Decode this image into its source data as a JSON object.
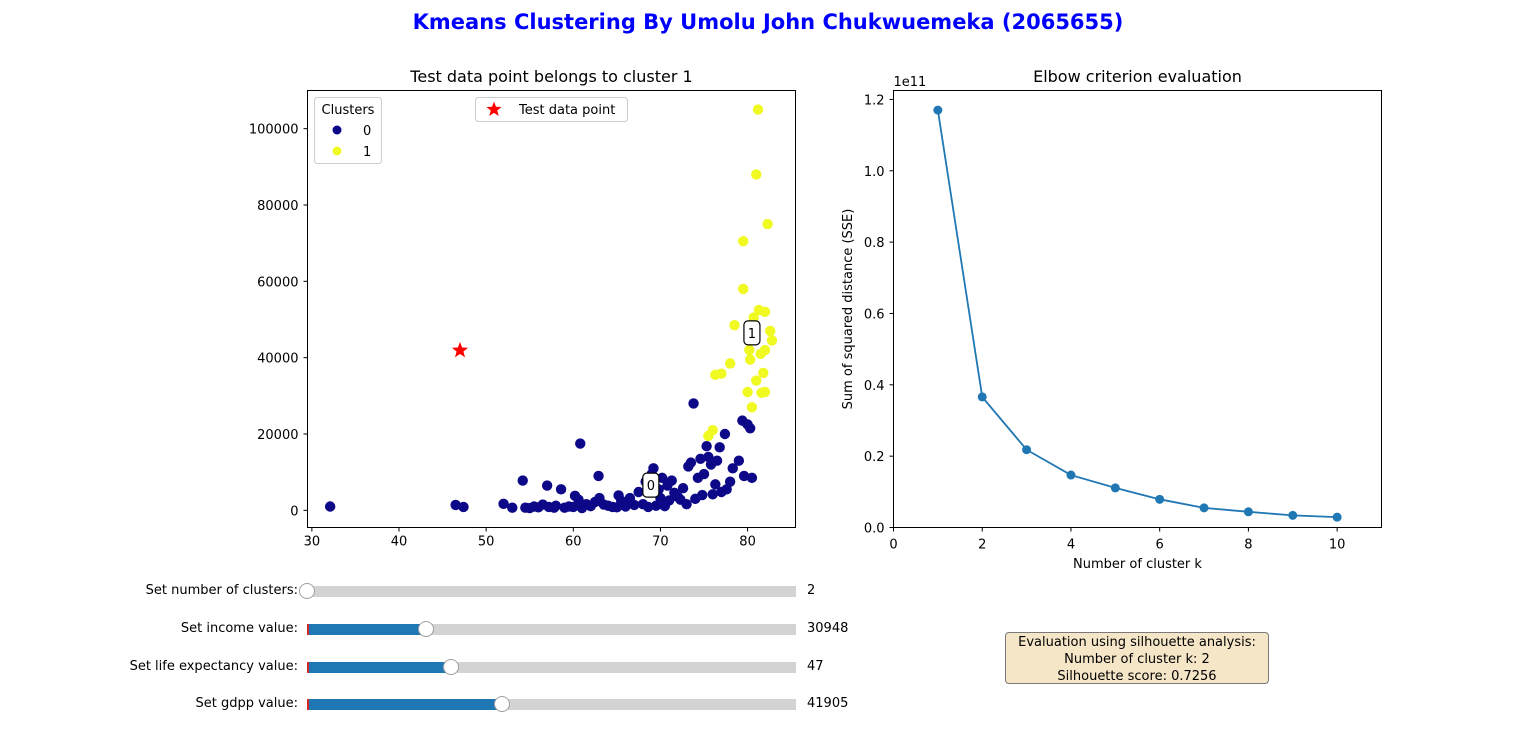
{
  "figure": {
    "suptitle": "Kmeans Clustering By Umolu John Chukwuemeka (2065655)",
    "suptitle_color": "#0000ff"
  },
  "chart_data": [
    {
      "type": "scatter",
      "title": "Test data point belongs to cluster 1",
      "xlabel": "",
      "ylabel": "",
      "xlim": [
        29.5,
        85.5
      ],
      "ylim": [
        -4500,
        110000
      ],
      "xticks": [
        30,
        40,
        50,
        60,
        70,
        80
      ],
      "yticks": [
        0,
        20000,
        40000,
        60000,
        80000,
        100000
      ],
      "grid": false,
      "legend_clusters": {
        "title": "Clusters",
        "placement": "top-left",
        "entries": [
          "0",
          "1"
        ]
      },
      "legend_test": {
        "label": "Test data point",
        "placement": "top-center"
      },
      "series": [
        {
          "name": "0",
          "color": "#0d0887",
          "points": [
            [
              32.1,
              1000
            ],
            [
              46.5,
              1400
            ],
            [
              47.4,
              900
            ],
            [
              52.0,
              1700
            ],
            [
              53.0,
              700
            ],
            [
              54.2,
              7800
            ],
            [
              54.5,
              700
            ],
            [
              55.0,
              600
            ],
            [
              55.5,
              1000
            ],
            [
              56.0,
              800
            ],
            [
              56.5,
              1500
            ],
            [
              57.0,
              6500
            ],
            [
              57.2,
              900
            ],
            [
              57.8,
              700
            ],
            [
              58.0,
              1200
            ],
            [
              58.6,
              5500
            ],
            [
              59.0,
              700
            ],
            [
              59.5,
              1000
            ],
            [
              60.0,
              900
            ],
            [
              60.2,
              3800
            ],
            [
              60.6,
              2800
            ],
            [
              60.8,
              17500
            ],
            [
              61.0,
              600
            ],
            [
              61.5,
              1600
            ],
            [
              62.0,
              1100
            ],
            [
              62.5,
              2200
            ],
            [
              62.9,
              9000
            ],
            [
              63.0,
              3200
            ],
            [
              63.5,
              1500
            ],
            [
              64.0,
              1200
            ],
            [
              64.5,
              900
            ],
            [
              65.0,
              800
            ],
            [
              65.2,
              3900
            ],
            [
              65.5,
              2500
            ],
            [
              66.0,
              1000
            ],
            [
              66.5,
              3200
            ],
            [
              67.0,
              1400
            ],
            [
              67.5,
              4800
            ],
            [
              68.0,
              1600
            ],
            [
              68.3,
              7500
            ],
            [
              68.6,
              900
            ],
            [
              69.0,
              9500
            ],
            [
              69.2,
              11000
            ],
            [
              69.5,
              1200
            ],
            [
              69.8,
              5500
            ],
            [
              70.0,
              3200
            ],
            [
              70.2,
              8500
            ],
            [
              70.5,
              1100
            ],
            [
              70.8,
              6500
            ],
            [
              71.0,
              2600
            ],
            [
              71.3,
              7800
            ],
            [
              71.6,
              4600
            ],
            [
              72.0,
              3500
            ],
            [
              72.3,
              2800
            ],
            [
              72.6,
              5800
            ],
            [
              73.0,
              1600
            ],
            [
              73.2,
              11500
            ],
            [
              73.5,
              12500
            ],
            [
              73.8,
              28000
            ],
            [
              74.0,
              3000
            ],
            [
              74.3,
              8500
            ],
            [
              74.6,
              13500
            ],
            [
              74.8,
              4000
            ],
            [
              75.0,
              9500
            ],
            [
              75.3,
              16800
            ],
            [
              75.5,
              14000
            ],
            [
              75.8,
              12000
            ],
            [
              76.0,
              4200
            ],
            [
              76.3,
              6800
            ],
            [
              76.5,
              13000
            ],
            [
              76.8,
              16500
            ],
            [
              77.0,
              4800
            ],
            [
              77.4,
              20000
            ],
            [
              77.6,
              5500
            ],
            [
              78.0,
              7500
            ],
            [
              78.3,
              11000
            ],
            [
              79.0,
              13000
            ],
            [
              79.4,
              23500
            ],
            [
              79.6,
              9000
            ],
            [
              80.0,
              22500
            ],
            [
              80.3,
              21500
            ],
            [
              80.5,
              8500
            ]
          ]
        },
        {
          "name": "1",
          "color": "#f0f921",
          "points": [
            [
              75.5,
              19500
            ],
            [
              76.0,
              21000
            ],
            [
              76.3,
              35500
            ],
            [
              77.0,
              35800
            ],
            [
              78.0,
              38500
            ],
            [
              78.5,
              48500
            ],
            [
              79.5,
              70500
            ],
            [
              79.5,
              58000
            ],
            [
              80.0,
              31000
            ],
            [
              80.2,
              42000
            ],
            [
              80.3,
              39500
            ],
            [
              80.5,
              27000
            ],
            [
              80.7,
              50500
            ],
            [
              81.0,
              34000
            ],
            [
              81.0,
              88000
            ],
            [
              81.2,
              105000
            ],
            [
              81.3,
              52500
            ],
            [
              81.5,
              41000
            ],
            [
              81.6,
              30800
            ],
            [
              81.8,
              36000
            ],
            [
              82.0,
              52000
            ],
            [
              82.0,
              42000
            ],
            [
              82.0,
              31000
            ],
            [
              82.3,
              75000
            ],
            [
              82.6,
              47000
            ],
            [
              82.8,
              44500
            ]
          ]
        }
      ],
      "centroid_labels": [
        {
          "text": "0",
          "x": 68.9,
          "y": 6600
        },
        {
          "text": "1",
          "x": 80.5,
          "y": 46500
        }
      ],
      "test_point": {
        "x": 47,
        "y": 41905,
        "color": "#ff0000"
      }
    },
    {
      "type": "line",
      "title": "Elbow criterion evaluation",
      "xlabel": "Number of cluster k",
      "ylabel": "Sum of squared distance (SSE)",
      "offset_text": "1e11",
      "xlim": [
        0,
        11
      ],
      "ylim": [
        0,
        1.225
      ],
      "xticks": [
        0,
        2,
        4,
        6,
        8,
        10
      ],
      "yticks": [
        0.0,
        0.2,
        0.4,
        0.6,
        0.8,
        1.0,
        1.2
      ],
      "grid": false,
      "color": "#1f77b4",
      "x": [
        1,
        2,
        3,
        4,
        5,
        6,
        7,
        8,
        9,
        10
      ],
      "y": [
        1.17,
        0.366,
        0.218,
        0.147,
        0.111,
        0.079,
        0.055,
        0.044,
        0.034,
        0.029
      ]
    }
  ],
  "sliders": [
    {
      "label": "Set number of clusters:",
      "value": "2",
      "fraction": 0.0,
      "fill_color": "#d3d3d3"
    },
    {
      "label": "Set income value:",
      "value": "30948",
      "fraction": 0.243,
      "fill_color": "#1f77b4"
    },
    {
      "label": "Set life expectancy value:",
      "value": "47",
      "fraction": 0.294,
      "fill_color": "#1f77b4"
    },
    {
      "label": "Set gdpp value:",
      "value": "41905",
      "fraction": 0.398,
      "fill_color": "#1f77b4"
    }
  ],
  "evaluation": {
    "line1": "Evaluation using silhouette analysis:",
    "line2": "Number of cluster k: 2",
    "line3": "Silhouette score: 0.7256"
  }
}
